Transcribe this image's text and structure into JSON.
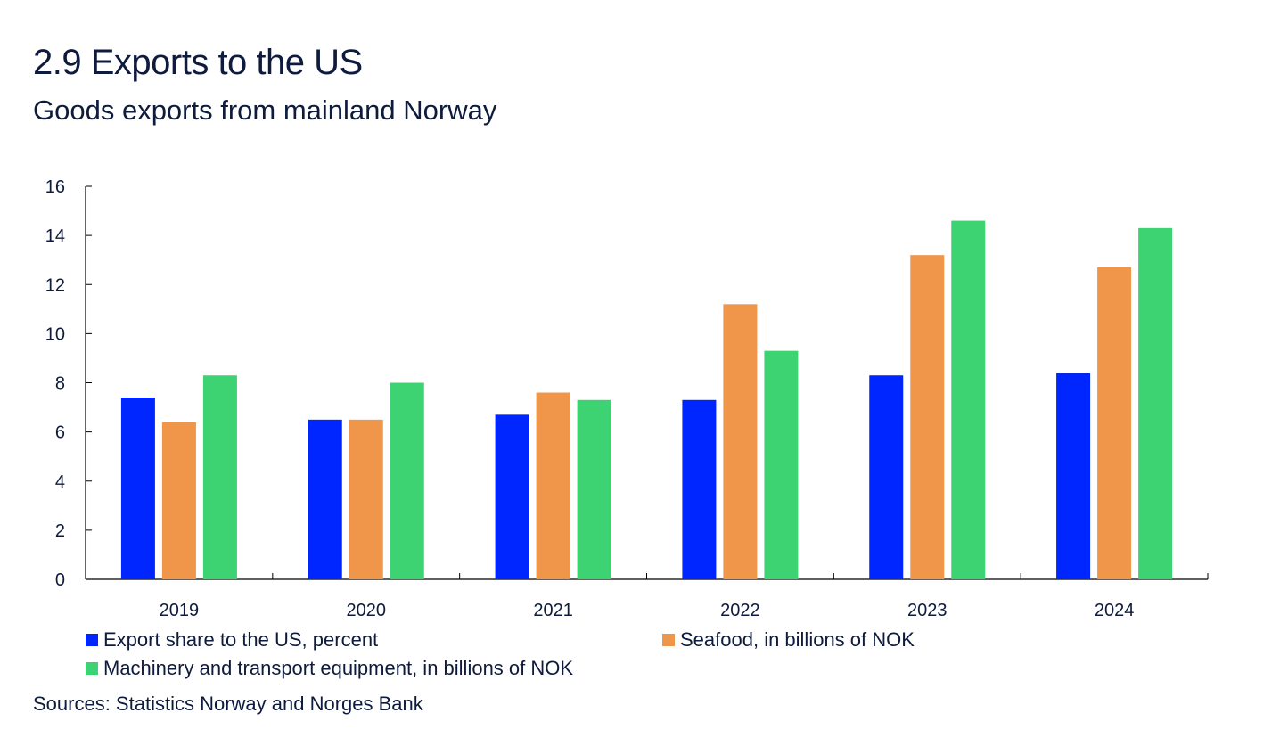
{
  "header": {
    "title": "2.9 Exports to the US",
    "subtitle": "Goods exports from mainland Norway"
  },
  "footer": {
    "source": "Sources: Statistics Norway and Norges Bank"
  },
  "chart_data": {
    "type": "bar",
    "title": "2.9 Exports to the US",
    "subtitle": "Goods exports from mainland Norway",
    "xlabel": "",
    "ylabel": "",
    "categories": [
      "2019",
      "2020",
      "2021",
      "2022",
      "2023",
      "2024"
    ],
    "ylim": [
      0,
      16
    ],
    "yticks": [
      0,
      2,
      4,
      6,
      8,
      10,
      12,
      14,
      16
    ],
    "grid": false,
    "legend_position": "bottom",
    "series": [
      {
        "name": "Export share to the US, percent",
        "color": "#0026ff",
        "values": [
          7.4,
          6.5,
          6.7,
          7.3,
          8.3,
          8.4
        ]
      },
      {
        "name": "Seafood, in billions of NOK",
        "color": "#ef964a",
        "values": [
          6.4,
          6.5,
          7.6,
          11.2,
          13.2,
          12.7
        ]
      },
      {
        "name": "Machinery and transport equipment, in billions of NOK",
        "color": "#3dd373",
        "values": [
          8.3,
          8.0,
          7.3,
          9.3,
          14.6,
          14.3
        ]
      }
    ],
    "source": "Sources: Statistics Norway and Norges Bank"
  }
}
